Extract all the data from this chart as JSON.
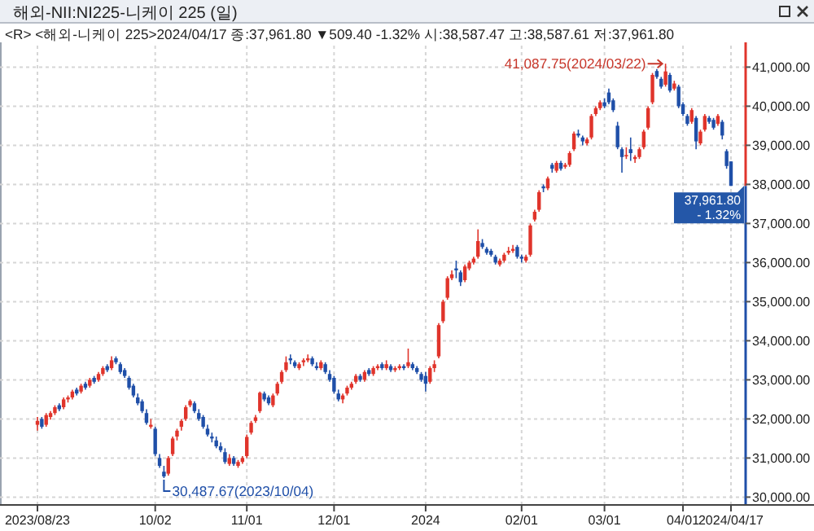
{
  "chart_data": {
    "type": "candlestick",
    "title": "해외-NII:NI225-니케이 225 (일)",
    "subtitle": "<R> <해외-니케이 225>2024/04/17 종:37,961.80 ▼509.40 -1.32% 시:38,587.47 고:38,587.61 저:37,961.80",
    "categories": [
      "2023/08/23",
      null,
      null,
      null,
      null,
      null,
      null,
      null,
      null,
      null,
      null,
      null,
      null,
      null,
      null,
      null,
      null,
      null,
      null,
      null,
      null,
      null,
      null,
      null,
      null,
      null,
      null,
      "10/02",
      null,
      null,
      null,
      null,
      null,
      null,
      null,
      null,
      null,
      null,
      null,
      null,
      null,
      null,
      null,
      null,
      null,
      null,
      null,
      null,
      "11/01",
      null,
      null,
      null,
      null,
      null,
      null,
      null,
      null,
      null,
      null,
      null,
      null,
      null,
      null,
      null,
      null,
      null,
      null,
      null,
      "12/01",
      null,
      null,
      null,
      null,
      null,
      null,
      null,
      null,
      null,
      null,
      null,
      null,
      null,
      null,
      null,
      null,
      null,
      null,
      null,
      null,
      "2024",
      null,
      null,
      null,
      null,
      null,
      null,
      null,
      null,
      null,
      null,
      null,
      null,
      null,
      null,
      null,
      null,
      null,
      null,
      null,
      null,
      null,
      "02/01",
      null,
      null,
      null,
      null,
      null,
      null,
      null,
      null,
      null,
      null,
      null,
      null,
      null,
      null,
      null,
      null,
      null,
      null,
      "03/01",
      null,
      null,
      null,
      null,
      null,
      null,
      null,
      null,
      null,
      null,
      null,
      null,
      null,
      null,
      null,
      null,
      null,
      "04/01",
      null,
      null,
      null,
      null,
      null,
      null,
      null,
      null,
      null,
      null,
      "2024/04/17"
    ],
    "ohlc": [
      [
        31850,
        32050,
        31700,
        31950
      ],
      [
        32000,
        32050,
        31750,
        31800
      ],
      [
        31850,
        32150,
        31800,
        32100
      ],
      [
        32050,
        32200,
        31980,
        32150
      ],
      [
        32150,
        32350,
        32100,
        32300
      ],
      [
        32350,
        32400,
        32200,
        32250
      ],
      [
        32300,
        32550,
        32250,
        32500
      ],
      [
        32500,
        32600,
        32420,
        32550
      ],
      [
        32550,
        32750,
        32500,
        32700
      ],
      [
        32750,
        32800,
        32600,
        32650
      ],
      [
        32700,
        32900,
        32650,
        32850
      ],
      [
        32900,
        32950,
        32750,
        32800
      ],
      [
        32850,
        33050,
        32800,
        33000
      ],
      [
        33050,
        33100,
        32900,
        32950
      ],
      [
        33000,
        33200,
        32950,
        33150
      ],
      [
        33150,
        33350,
        33100,
        33300
      ],
      [
        33350,
        33400,
        33200,
        33250
      ],
      [
        33300,
        33600,
        33250,
        33500
      ],
      [
        33550,
        33600,
        33400,
        33450
      ],
      [
        33400,
        33450,
        33150,
        33200
      ],
      [
        33250,
        33300,
        33050,
        33100
      ],
      [
        33050,
        33100,
        32750,
        32800
      ],
      [
        32850,
        32900,
        32550,
        32600
      ],
      [
        32550,
        32650,
        32350,
        32400
      ],
      [
        32450,
        32500,
        32150,
        32200
      ],
      [
        32150,
        32250,
        31850,
        31900
      ],
      [
        31800,
        32000,
        31750,
        31850
      ],
      [
        31750,
        31800,
        31050,
        31100
      ],
      [
        31000,
        31100,
        30750,
        30800
      ],
      [
        30650,
        30800,
        30487.67,
        30530
      ],
      [
        30600,
        31050,
        30550,
        31000
      ],
      [
        31100,
        31550,
        31050,
        31500
      ],
      [
        31550,
        31750,
        31450,
        31700
      ],
      [
        31800,
        32000,
        31700,
        31950
      ],
      [
        32000,
        32350,
        31950,
        32300
      ],
      [
        32350,
        32500,
        32300,
        32460
      ],
      [
        32400,
        32450,
        32150,
        32200
      ],
      [
        32150,
        32250,
        31950,
        32000
      ],
      [
        32050,
        32100,
        31750,
        31800
      ],
      [
        31750,
        31850,
        31550,
        31600
      ],
      [
        31550,
        31650,
        31400,
        31500
      ],
      [
        31450,
        31550,
        31250,
        31300
      ],
      [
        31300,
        31400,
        31150,
        31200
      ],
      [
        31150,
        31250,
        30850,
        30900
      ],
      [
        30850,
        31100,
        30800,
        31000
      ],
      [
        31000,
        31050,
        30800,
        30850
      ],
      [
        30800,
        30950,
        30750,
        30900
      ],
      [
        30900,
        31050,
        30850,
        31000
      ],
      [
        31050,
        31600,
        31000,
        31540
      ],
      [
        31650,
        31950,
        31600,
        31900
      ],
      [
        31950,
        32100,
        31900,
        32040
      ],
      [
        32200,
        32700,
        32150,
        32670
      ],
      [
        32650,
        32700,
        32450,
        32500
      ],
      [
        32550,
        32600,
        32350,
        32400
      ],
      [
        32350,
        32650,
        32300,
        32600
      ],
      [
        32650,
        32950,
        32600,
        32900
      ],
      [
        32950,
        33250,
        32900,
        33200
      ],
      [
        33250,
        33600,
        33200,
        33450
      ],
      [
        33550,
        33650,
        33400,
        33500
      ],
      [
        33450,
        33500,
        33300,
        33350
      ],
      [
        33300,
        33450,
        33250,
        33400
      ],
      [
        33450,
        33550,
        33350,
        33500
      ],
      [
        33500,
        33650,
        33450,
        33550
      ],
      [
        33550,
        33600,
        33350,
        33400
      ],
      [
        33350,
        33450,
        33250,
        33300
      ],
      [
        33300,
        33500,
        33250,
        33450
      ],
      [
        33400,
        33450,
        33150,
        33200
      ],
      [
        33150,
        33250,
        32950,
        33000
      ],
      [
        33050,
        33100,
        32650,
        32700
      ],
      [
        32650,
        32750,
        32450,
        32500
      ],
      [
        32500,
        32650,
        32400,
        32600
      ],
      [
        32650,
        32850,
        32600,
        32800
      ],
      [
        32800,
        32950,
        32750,
        32900
      ],
      [
        32950,
        33150,
        32900,
        33100
      ],
      [
        33100,
        33150,
        32950,
        33000
      ],
      [
        33000,
        33250,
        32950,
        33200
      ],
      [
        33250,
        33300,
        33100,
        33150
      ],
      [
        33150,
        33350,
        33100,
        33300
      ],
      [
        33300,
        33400,
        33250,
        33350
      ],
      [
        33400,
        33450,
        33250,
        33300
      ],
      [
        33300,
        33500,
        33250,
        33400
      ],
      [
        33350,
        33400,
        33200,
        33250
      ],
      [
        33250,
        33350,
        33200,
        33300
      ],
      [
        33300,
        33400,
        33250,
        33350
      ],
      [
        33350,
        33400,
        33250,
        33300
      ],
      [
        33350,
        33800,
        33300,
        33450
      ],
      [
        33400,
        33450,
        33250,
        33300
      ],
      [
        33300,
        33350,
        33150,
        33200
      ],
      [
        33150,
        33200,
        32950,
        33000
      ],
      [
        33100,
        33200,
        32700,
        32900
      ],
      [
        32950,
        33350,
        32900,
        33300
      ],
      [
        33300,
        33500,
        33200,
        33400
      ],
      [
        33600,
        34450,
        33550,
        34400
      ],
      [
        34500,
        35050,
        34450,
        35000
      ],
      [
        35100,
        35650,
        35050,
        35600
      ],
      [
        35600,
        35800,
        35550,
        35700
      ],
      [
        35850,
        36050,
        35600,
        35800
      ],
      [
        35750,
        35800,
        35400,
        35500
      ],
      [
        35550,
        35950,
        35500,
        35900
      ],
      [
        35850,
        36050,
        35800,
        36000
      ],
      [
        36000,
        36150,
        35950,
        36100
      ],
      [
        36150,
        36850,
        36100,
        36550
      ],
      [
        36500,
        36600,
        36350,
        36400
      ],
      [
        36350,
        36400,
        36200,
        36250
      ],
      [
        36300,
        36350,
        36150,
        36200
      ],
      [
        36150,
        36200,
        35950,
        36000
      ],
      [
        35950,
        36100,
        35900,
        36050
      ],
      [
        36050,
        36250,
        36000,
        36200
      ],
      [
        36250,
        36400,
        36200,
        36300
      ],
      [
        36300,
        36450,
        36250,
        36350
      ],
      [
        36400,
        36450,
        36100,
        36150
      ],
      [
        36150,
        36200,
        36000,
        36100
      ],
      [
        36050,
        36200,
        36000,
        36150
      ],
      [
        36200,
        37000,
        36150,
        36950
      ],
      [
        37100,
        37350,
        37050,
        37300
      ],
      [
        37350,
        37850,
        37300,
        37800
      ],
      [
        37950,
        38000,
        37800,
        37900
      ],
      [
        37900,
        38200,
        37850,
        38150
      ],
      [
        38500,
        38550,
        38300,
        38400
      ],
      [
        38350,
        38600,
        38300,
        38550
      ],
      [
        38550,
        38600,
        38350,
        38400
      ],
      [
        38450,
        38550,
        38400,
        38500
      ],
      [
        38500,
        38850,
        38450,
        38800
      ],
      [
        38900,
        39350,
        38850,
        39300
      ],
      [
        39300,
        39400,
        39200,
        39250
      ],
      [
        39200,
        39250,
        39000,
        39100
      ],
      [
        39050,
        39200,
        39000,
        39150
      ],
      [
        39200,
        39800,
        39150,
        39750
      ],
      [
        39800,
        40000,
        39750,
        39950
      ],
      [
        39950,
        40150,
        39900,
        40100
      ],
      [
        40100,
        40200,
        39950,
        40000
      ],
      [
        40350,
        40450,
        40050,
        40100
      ],
      [
        40150,
        40200,
        39850,
        39900
      ],
      [
        39500,
        39600,
        38900,
        38950
      ],
      [
        38900,
        38950,
        38300,
        38700
      ],
      [
        38750,
        38950,
        38650,
        38750
      ],
      [
        38900,
        39200,
        38600,
        38800
      ],
      [
        38650,
        38750,
        38550,
        38700
      ],
      [
        38700,
        38950,
        38650,
        38900
      ],
      [
        38950,
        39400,
        38900,
        39350
      ],
      [
        39450,
        40000,
        39400,
        39950
      ],
      [
        40100,
        40850,
        40050,
        40800
      ],
      [
        40900,
        40950,
        40700,
        40750
      ],
      [
        40700,
        40750,
        40450,
        40500
      ],
      [
        40550,
        41087.75,
        40500,
        40890
      ],
      [
        40800,
        40850,
        40350,
        40400
      ],
      [
        40450,
        40650,
        40400,
        40580
      ],
      [
        40500,
        40550,
        39950,
        40000
      ],
      [
        40050,
        40100,
        39750,
        39800
      ],
      [
        39750,
        39800,
        39500,
        39550
      ],
      [
        39600,
        39950,
        39550,
        39900
      ],
      [
        39700,
        39750,
        38900,
        39100
      ],
      [
        39050,
        39400,
        39000,
        39350
      ],
      [
        39400,
        39800,
        39350,
        39750
      ],
      [
        39700,
        39750,
        39550,
        39600
      ],
      [
        39650,
        39700,
        39400,
        39450
      ],
      [
        39550,
        39800,
        39500,
        39750
      ],
      [
        39600,
        39650,
        39150,
        39250
      ],
      [
        38850,
        38900,
        38400,
        38470
      ],
      [
        38587.47,
        38587.61,
        37961.8,
        37961.8
      ]
    ],
    "ylim": [
      29800,
      41550
    ],
    "yticks": [
      {
        "value": 30000,
        "label": "30,000.00"
      },
      {
        "value": 31000,
        "label": "31,000.00"
      },
      {
        "value": 32000,
        "label": "32,000.00"
      },
      {
        "value": 33000,
        "label": "33,000.00"
      },
      {
        "value": 34000,
        "label": "34,000.00"
      },
      {
        "value": 35000,
        "label": "35,000.00"
      },
      {
        "value": 36000,
        "label": "36,000.00"
      },
      {
        "value": 37000,
        "label": "37,000.00"
      },
      {
        "value": 38000,
        "label": "38,000.00"
      },
      {
        "value": 39000,
        "label": "39,000.00"
      },
      {
        "value": 40000,
        "label": "40,000.00"
      },
      {
        "value": 41000,
        "label": "41,000.00"
      }
    ],
    "grid": true,
    "annotations": [
      "41,087.75(2024/03/22)",
      "30,487.67(2023/10/04)",
      "37,961.80",
      "- 1.32%"
    ]
  }
}
